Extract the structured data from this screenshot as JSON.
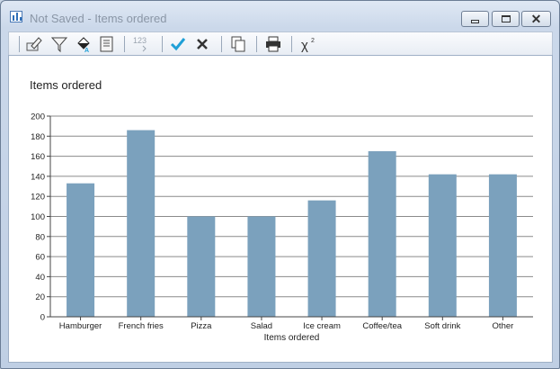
{
  "window": {
    "title": "Not Saved - Items ordered"
  },
  "toolbar": {
    "buttons": [
      {
        "icon": "edit-icon"
      },
      {
        "icon": "filter-icon"
      },
      {
        "icon": "fill-color-icon"
      },
      {
        "icon": "properties-icon"
      },
      {
        "icon": "number-format-icon",
        "label": "123"
      },
      {
        "icon": "checkmark-icon"
      },
      {
        "icon": "cancel-x-icon"
      },
      {
        "icon": "copy-icon"
      },
      {
        "icon": "print-icon"
      },
      {
        "icon": "chi-square-icon",
        "label": "χ²"
      }
    ]
  },
  "colors": {
    "bar": "#7ba1bd",
    "grid": "#8a8a8a",
    "check": "#1f9fd6"
  },
  "chart_data": {
    "type": "bar",
    "title": "Items ordered",
    "xlabel": "Items ordered",
    "ylabel": "",
    "categories": [
      "Hamburger",
      "French fries",
      "Pizza",
      "Salad",
      "Ice cream",
      "Coffee/tea",
      "Soft drink",
      "Other"
    ],
    "values": [
      133,
      186,
      100,
      100,
      116,
      165,
      142,
      142
    ],
    "ylim": [
      0,
      200
    ],
    "yticks": [
      0,
      20,
      40,
      60,
      80,
      100,
      120,
      140,
      160,
      180,
      200
    ],
    "grid": true,
    "legend": "none"
  }
}
